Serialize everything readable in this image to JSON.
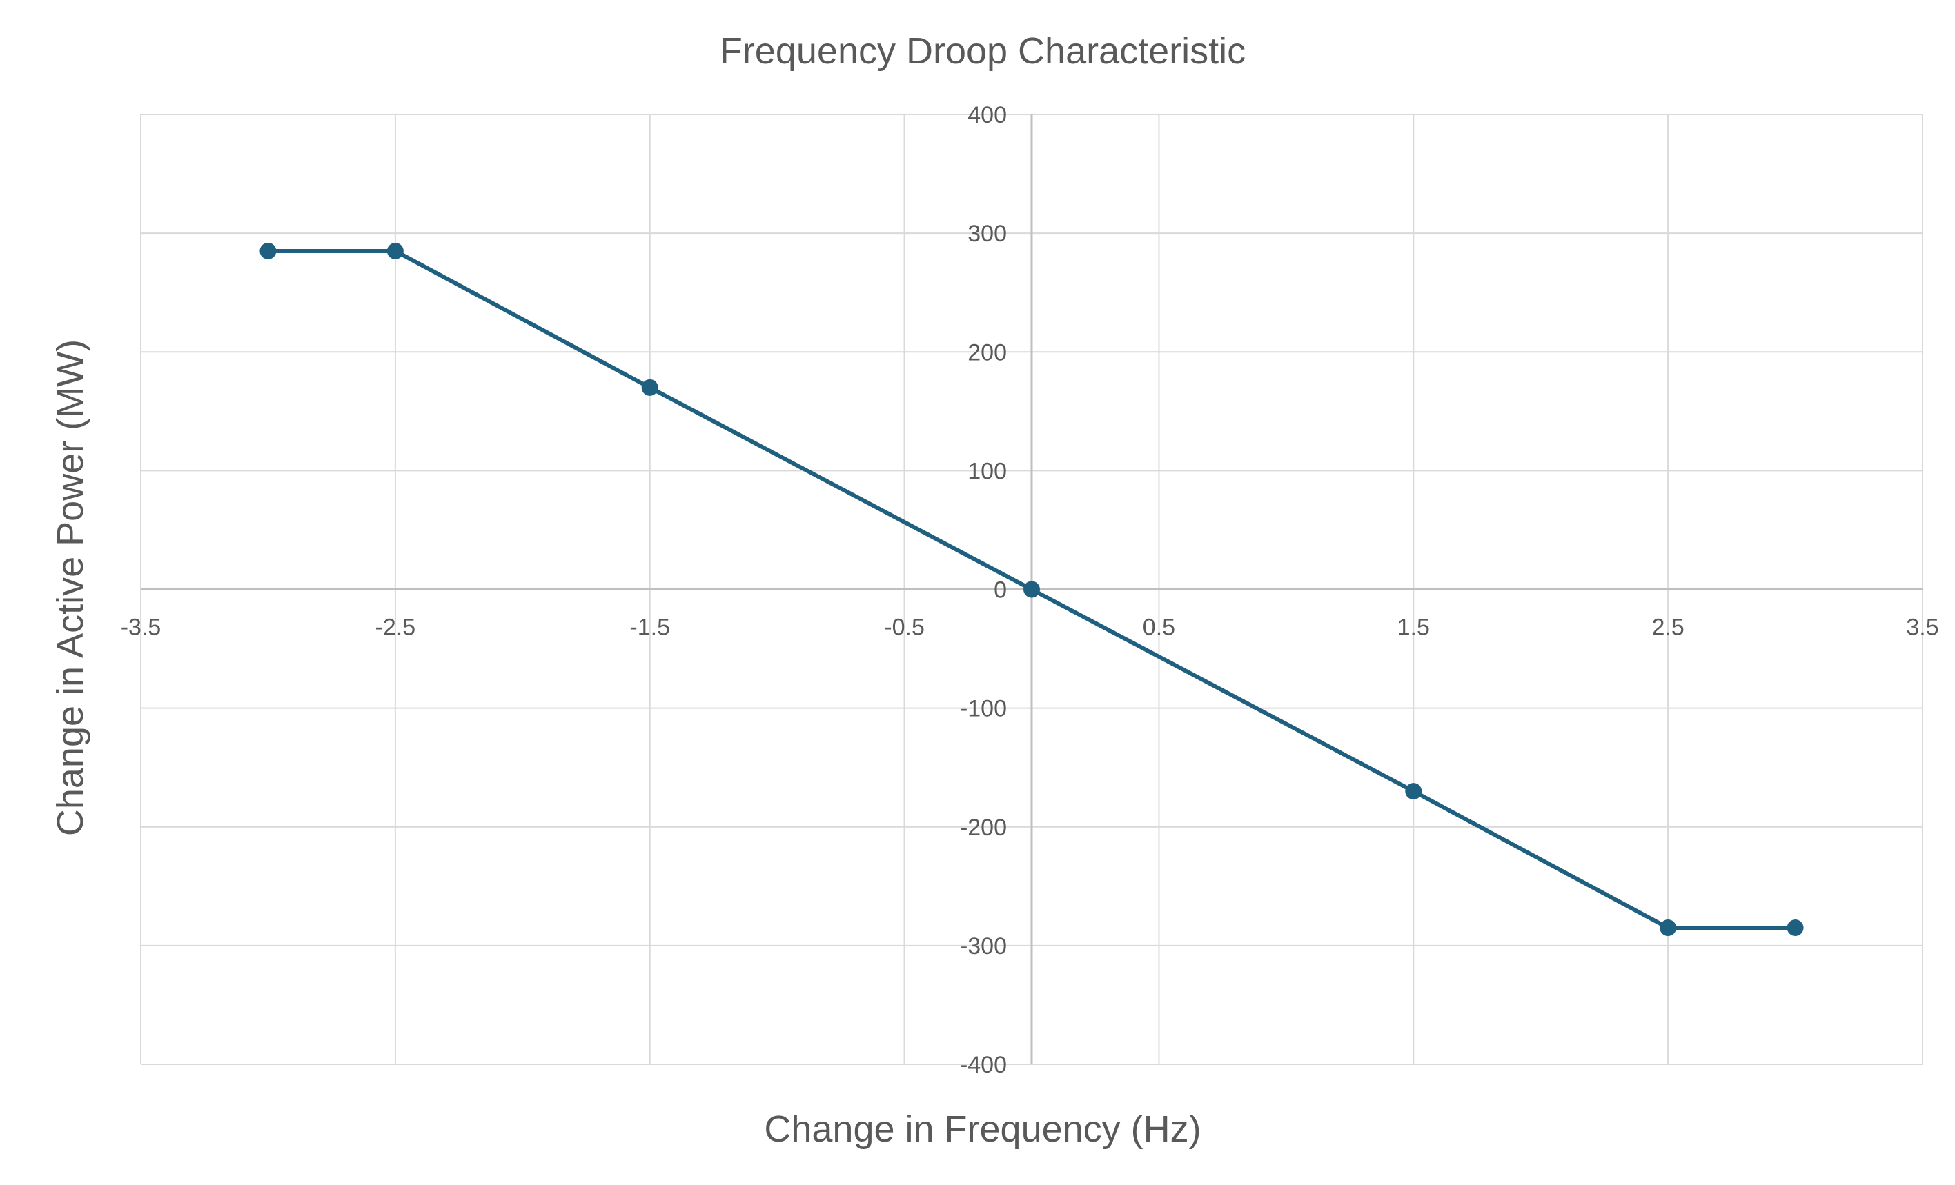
{
  "chart_data": {
    "type": "scatter",
    "title": "Frequency Droop Characteristic",
    "xlabel": "Change in Frequency (Hz)",
    "ylabel": "Change in  Active Power (MW)",
    "xlim": [
      -3.5,
      3.5
    ],
    "ylim": [
      -400,
      400
    ],
    "x_ticks": [
      -3.5,
      -2.5,
      -1.5,
      -0.5,
      0.5,
      1.5,
      2.5,
      3.5
    ],
    "x_tick_labels": [
      "-3.5",
      "-2.5",
      "-1.5",
      "-0.5",
      "0.5",
      "1.5",
      "2.5",
      "3.5"
    ],
    "y_ticks": [
      400,
      300,
      200,
      100,
      0,
      -100,
      -200,
      -300,
      -400
    ],
    "y_tick_labels": [
      "400",
      "300",
      "200",
      "100",
      "0",
      "-100",
      "-200",
      "-300",
      "-400"
    ],
    "grid": true,
    "legend": "none",
    "series": [
      {
        "style": "line-with-markers",
        "color": "#1f5f7f",
        "x": [
          -3,
          -2.5,
          -1.5,
          0,
          1.5,
          2.5,
          3
        ],
        "y": [
          285,
          285,
          170,
          0,
          -170,
          -285,
          -285
        ]
      }
    ]
  }
}
